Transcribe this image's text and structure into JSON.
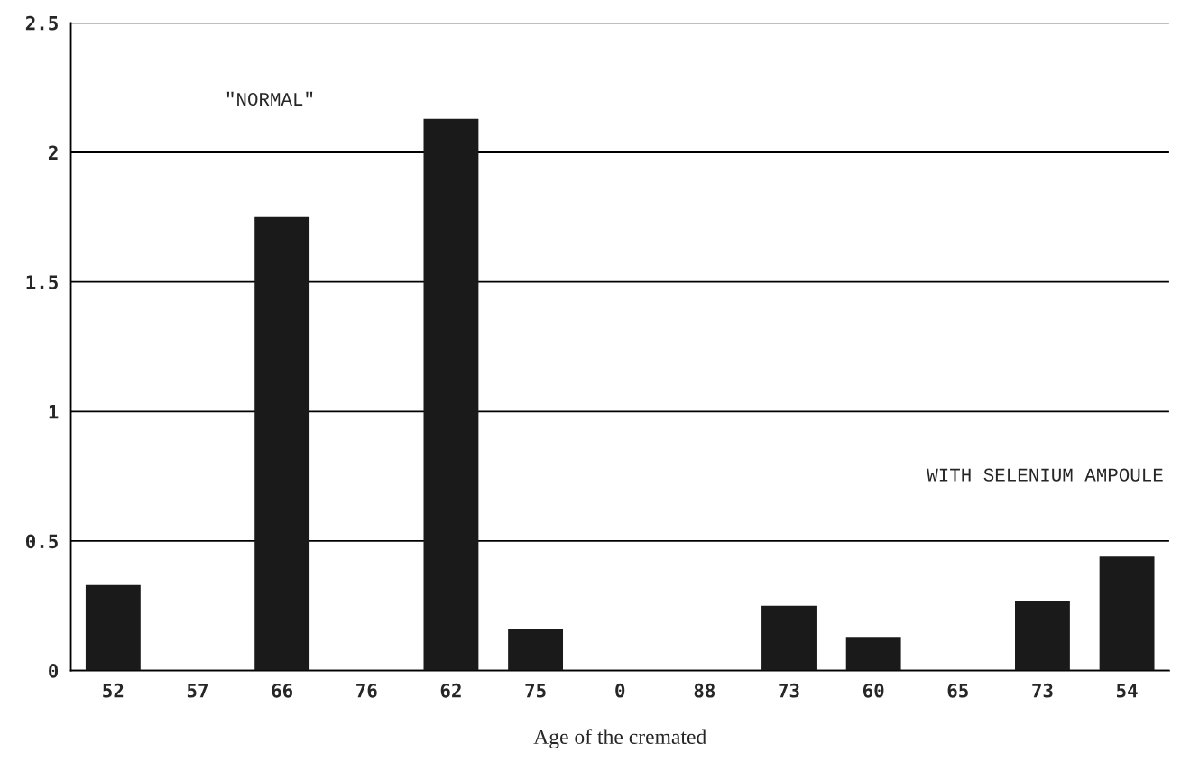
{
  "chart_data": {
    "type": "bar",
    "xlabel": "Age of the cremated",
    "categories": [
      "52",
      "57",
      "66",
      "76",
      "62",
      "75",
      "0",
      "88",
      "73",
      "60",
      "65",
      "73",
      "54"
    ],
    "values": [
      0.33,
      0,
      1.75,
      0,
      2.13,
      0.16,
      0,
      0,
      0.25,
      0.13,
      0,
      0.27,
      0.44
    ],
    "color": "#1a1a1a",
    "ylim": [
      0,
      2.5
    ],
    "yticks": [
      0,
      0.5,
      1,
      1.5,
      2,
      2.5
    ],
    "grid": "y",
    "annotations": [
      "\"NORMAL\"",
      "WITH SELENIUM AMPOULE"
    ]
  }
}
